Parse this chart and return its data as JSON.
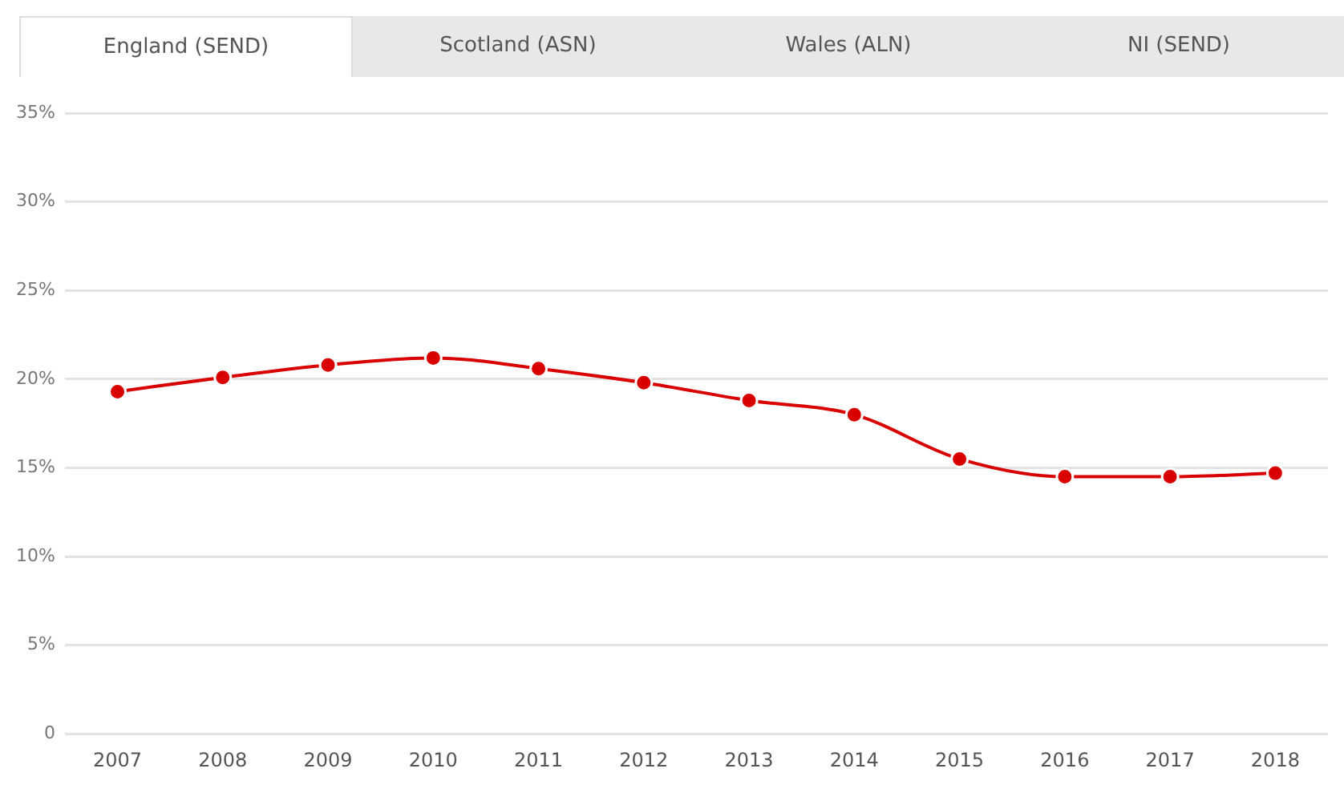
{
  "chart_data": {
    "type": "line",
    "categories": [
      "2007",
      "2008",
      "2009",
      "2010",
      "2011",
      "2012",
      "2013",
      "2014",
      "2015",
      "2016",
      "2017",
      "2018"
    ],
    "series": [
      {
        "color": "#d90000",
        "values": [
          19.3,
          20.1,
          20.8,
          21.2,
          20.6,
          19.8,
          18.8,
          18.0,
          15.5,
          14.5,
          14.5,
          14.7
        ]
      }
    ],
    "ylim": [
      0,
      35
    ],
    "yticks": [
      0,
      {
        "value": 5,
        "label": "5%"
      },
      {
        "value": 10,
        "label": "10%"
      },
      {
        "value": 15,
        "label": "15%"
      },
      {
        "value": 20,
        "label": "20%"
      },
      {
        "value": 25,
        "label": "25%"
      },
      {
        "value": 30,
        "label": "30%"
      },
      {
        "value": 35,
        "label": "35%"
      }
    ],
    "annotations": [
      "England (SEND)",
      "Scotland (ASN)",
      "Wales (ALN)",
      "NI (SEND)"
    ],
    "grid": "y",
    "legend": false,
    "marker": "circle",
    "line_style": "solid"
  }
}
